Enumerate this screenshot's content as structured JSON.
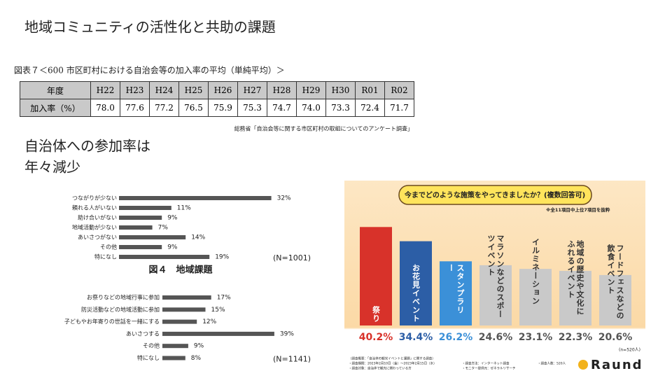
{
  "title": "地域コミュニティの活性化と共助の課題",
  "table": {
    "caption": "図表７＜600 市区町村における自治会等の加入率の平均（単純平均）＞",
    "header": [
      "年度",
      "H22",
      "H23",
      "H24",
      "H25",
      "H26",
      "H27",
      "H28",
      "H29",
      "H30",
      "R01",
      "R02"
    ],
    "rows": [
      [
        "加入率（%）",
        "78.0",
        "77.6",
        "77.2",
        "76.5",
        "75.9",
        "75.3",
        "74.7",
        "74.0",
        "73.3",
        "72.4",
        "71.7"
      ]
    ],
    "source": "総務省「自治会等に関する市区町村の取組についてのアンケート調査」"
  },
  "text": [
    "自治体への参加率は",
    "年々減少"
  ],
  "chart_data": [
    {
      "type": "hbar",
      "caption": "図４　地域課題",
      "note": "(N=1001)",
      "color": "#555555",
      "categories": [
        "つながりが少ない",
        "頼れる人がいない",
        "助け合いがない",
        "地域活動が少ない",
        "あいさつがない",
        "その他",
        "特になし"
      ],
      "values": [
        32,
        11,
        9,
        7,
        14,
        9,
        19
      ],
      "value_labels": [
        "32%",
        "11%",
        "9%",
        "7%",
        "14%",
        "9%",
        "19%"
      ]
    },
    {
      "type": "hbar",
      "note": "(N=1141)",
      "color": "#555555",
      "categories": [
        "お祭りなどの地域行事に参加",
        "防災活動などの地域活動に参加",
        "子どもやお年寄りの世話を一緒にする",
        "あいさつする",
        "その他",
        "特になし"
      ],
      "values": [
        17,
        15,
        12,
        39,
        9,
        8
      ],
      "value_labels": [
        "17%",
        "15%",
        "12%",
        "39%",
        "9%",
        "8%"
      ]
    },
    {
      "type": "bar",
      "title": "今までどのような施策をやってきましたか？(複数回答可)",
      "subtitle": "※全11項目中上位7項目を抜粋",
      "note": "(n=520人)",
      "categories": [
        "祭り",
        "お花見イベント",
        "スタンプラリー",
        "マラソンなどのスポーツイベント",
        "イルミネーション",
        "地域の歴史や文化にふれるイベント",
        "フードフェスなどの飲食イベント"
      ],
      "values": [
        40.2,
        34.4,
        26.2,
        24.6,
        23.1,
        22.3,
        20.6
      ],
      "value_labels": [
        "40.2%",
        "34.4%",
        "26.2%",
        "24.6%",
        "23.1%",
        "22.3%",
        "20.6%"
      ],
      "colors": [
        "#d8322a",
        "#2c5ea6",
        "#3b90d8",
        "#c9c9c9",
        "#c9c9c9",
        "#c9c9c9",
        "#c9c9c9"
      ],
      "footnotes": [
        "（調査概要：「自治体の観光イベントと課題」に関する調査）",
        "・調査期間：2023年2月10日（金）〜2023年2月15日（水）",
        "・調査対象：自治体で観光に関わっている方",
        "・調査方法：インターネット調査",
        "・モニター提供元：ゼネラルリサーチ",
        "・調査人数：520人"
      ],
      "logo": "Raund"
    }
  ]
}
